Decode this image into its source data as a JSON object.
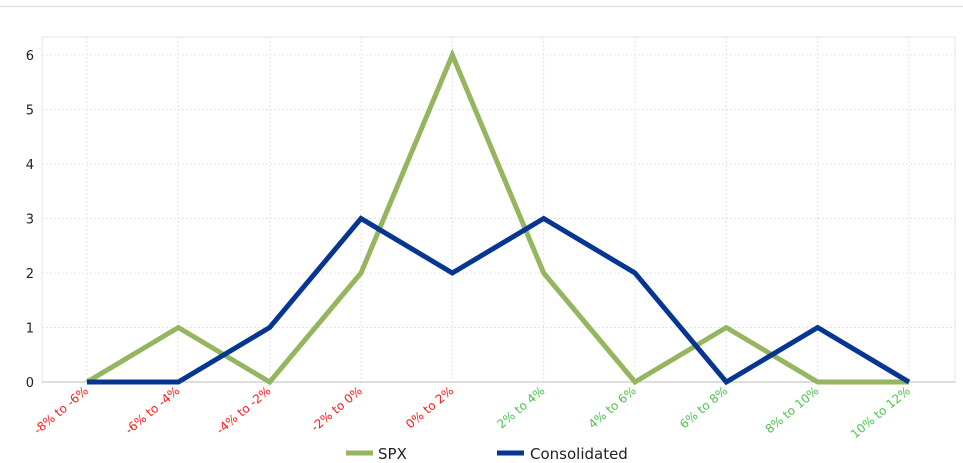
{
  "chart_data": {
    "type": "line",
    "categories": [
      "-8% to -6%",
      "-6% to -4%",
      "-4% to -2%",
      "-2% to 0%",
      "0% to 2%",
      "2% to 4%",
      "4% to 6%",
      "6% to 8%",
      "8% to 10%",
      "10% to 12%"
    ],
    "category_colors": [
      "#ff1a1a",
      "#ff1a1a",
      "#ff1a1a",
      "#ff1a1a",
      "#ff1a1a",
      "#4fc24f",
      "#4fc24f",
      "#4fc24f",
      "#4fc24f",
      "#4fc24f"
    ],
    "series": [
      {
        "name": "SPX",
        "color": "#96b55f",
        "values": [
          0,
          1,
          0,
          2,
          6,
          2,
          0,
          1,
          0,
          0
        ]
      },
      {
        "name": "Consolidated",
        "color": "#073592",
        "values": [
          0,
          0,
          1,
          3,
          2,
          3,
          2,
          0,
          1,
          0
        ]
      }
    ],
    "yticks": [
      0,
      1,
      2,
      3,
      4,
      5,
      6
    ],
    "ylim": [
      0,
      6
    ],
    "grid": true,
    "legend_position": "bottom-center"
  }
}
